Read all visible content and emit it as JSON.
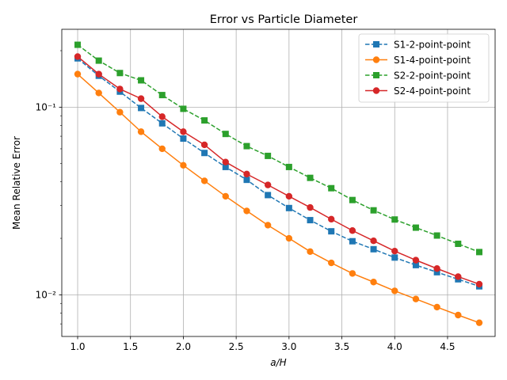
{
  "chart_data": {
    "type": "line",
    "title": "Error vs Particle Diameter",
    "xlabel": "a/H",
    "ylabel": "Mean Relative Error",
    "xscale": "linear",
    "yscale": "log",
    "xlim": [
      0.85,
      4.95
    ],
    "ylim": [
      0.006,
      0.26
    ],
    "xticks": [
      1.0,
      1.5,
      2.0,
      2.5,
      3.0,
      3.5,
      4.0,
      4.5
    ],
    "xtick_labels": [
      "1.0",
      "1.5",
      "2.0",
      "2.5",
      "3.0",
      "3.5",
      "4.0",
      "4.5"
    ],
    "yticks": [
      0.01,
      0.1
    ],
    "ytick_labels": [
      "10⁻²",
      "10⁻¹"
    ],
    "grid": true,
    "legend_position": "top-right",
    "x": [
      1.0,
      1.2,
      1.4,
      1.6,
      1.8,
      2.0,
      2.2,
      2.4,
      2.6,
      2.8,
      3.0,
      3.2,
      3.4,
      3.6,
      3.8,
      4.0,
      4.2,
      4.4,
      4.6,
      4.8
    ],
    "series": [
      {
        "name": "S1-2-point-point",
        "color": "#1f77b4",
        "linestyle": "dashed",
        "marker": "square",
        "values": [
          0.182,
          0.147,
          0.121,
          0.099,
          0.082,
          0.068,
          0.057,
          0.048,
          0.041,
          0.034,
          0.029,
          0.025,
          0.0218,
          0.0193,
          0.0175,
          0.0158,
          0.0144,
          0.0132,
          0.0121,
          0.0111
        ]
      },
      {
        "name": "S1-4-point-point",
        "color": "#ff7f0e",
        "linestyle": "solid",
        "marker": "circle",
        "values": [
          0.15,
          0.119,
          0.094,
          0.074,
          0.06,
          0.049,
          0.0405,
          0.0335,
          0.028,
          0.0235,
          0.02,
          0.017,
          0.0148,
          0.013,
          0.0117,
          0.0105,
          0.0095,
          0.0086,
          0.0078,
          0.0071
        ]
      },
      {
        "name": "S2-2-point-point",
        "color": "#2ca02c",
        "linestyle": "dashed",
        "marker": "square",
        "values": [
          0.215,
          0.177,
          0.152,
          0.139,
          0.116,
          0.098,
          0.085,
          0.072,
          0.062,
          0.055,
          0.048,
          0.042,
          0.037,
          0.032,
          0.0282,
          0.0252,
          0.0228,
          0.0207,
          0.0187,
          0.0169
        ]
      },
      {
        "name": "S2-4-point-point",
        "color": "#d62728",
        "linestyle": "solid",
        "marker": "circle",
        "values": [
          0.186,
          0.15,
          0.125,
          0.111,
          0.089,
          0.074,
          0.063,
          0.051,
          0.044,
          0.0385,
          0.0335,
          0.0292,
          0.0253,
          0.022,
          0.0194,
          0.0171,
          0.0153,
          0.0138,
          0.0125,
          0.0114
        ]
      }
    ]
  }
}
